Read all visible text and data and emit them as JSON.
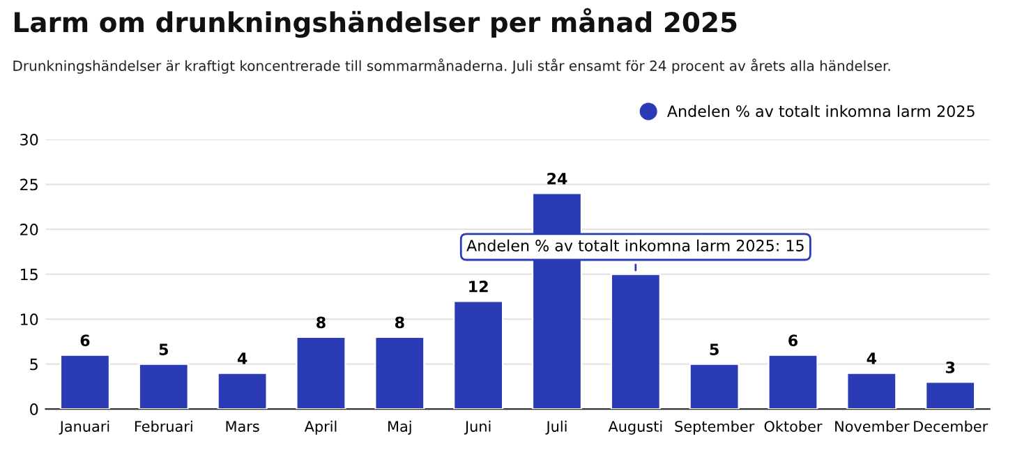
{
  "chart_data": {
    "type": "bar",
    "title": "Larm om drunkningshändelser per månad 2025",
    "subtitle": "Drunkningshändelser är kraftigt koncentrerade till sommarmånaderna. Juli står ensamt för 24 procent av årets alla händelser.",
    "categories": [
      "Januari",
      "Februari",
      "Mars",
      "April",
      "Maj",
      "Juni",
      "Juli",
      "Augusti",
      "September",
      "Oktober",
      "November",
      "December"
    ],
    "series": [
      {
        "name": "Andelen % av totalt inkomna larm 2025",
        "color": "#2b3bb5",
        "values": [
          6,
          5,
          4,
          8,
          8,
          12,
          24,
          15,
          5,
          6,
          4,
          3
        ],
        "value_labels": [
          "6",
          "5",
          "4",
          "8",
          "8",
          "12",
          "24",
          null,
          "5",
          "6",
          "4",
          "3"
        ]
      }
    ],
    "annotations": [
      {
        "text": "Andelen % av totalt inkomna larm 2025: 15",
        "x": "Augusti",
        "y": 15
      }
    ],
    "ylim": [
      0,
      30
    ],
    "yticks": [
      0,
      5,
      10,
      15,
      20,
      25,
      30
    ],
    "grid": "y",
    "legend": "top right"
  }
}
